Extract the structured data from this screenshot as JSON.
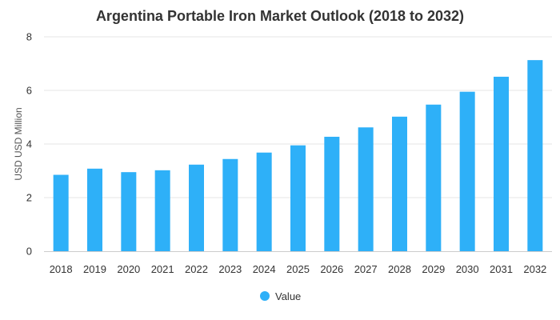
{
  "chart_data": {
    "type": "bar",
    "title": "Argentina Portable Iron Market Outlook (2018 to 2032)",
    "xlabel": "",
    "ylabel": "USD USD Million",
    "categories": [
      "2018",
      "2019",
      "2020",
      "2021",
      "2022",
      "2023",
      "2024",
      "2025",
      "2026",
      "2027",
      "2028",
      "2029",
      "2030",
      "2031",
      "2032"
    ],
    "series": [
      {
        "name": "Value",
        "color": "#2eb0f8",
        "values": [
          2.85,
          3.08,
          2.95,
          3.02,
          3.23,
          3.44,
          3.68,
          3.95,
          4.27,
          4.62,
          5.02,
          5.47,
          5.95,
          6.51,
          7.13
        ]
      }
    ],
    "ylim": [
      0,
      8
    ],
    "yticks": [
      "0",
      "2",
      "4",
      "6",
      "8"
    ],
    "grid": true,
    "legend_position": "bottom-center"
  }
}
